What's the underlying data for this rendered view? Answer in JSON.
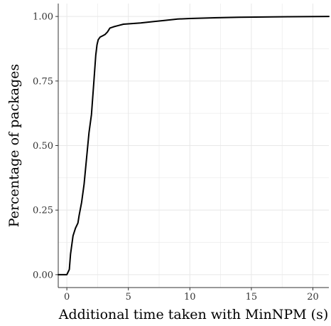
{
  "chart_data": {
    "type": "line",
    "title": "",
    "xlabel": "Additional time taken with MinNPM (s)",
    "ylabel": "Percentage of packages",
    "xlim": [
      -0.7,
      21.3
    ],
    "ylim": [
      -0.05,
      1.05
    ],
    "x_ticks": [
      0,
      5,
      10,
      15,
      20
    ],
    "x_tick_labels": [
      "0",
      "5",
      "10",
      "15",
      "20"
    ],
    "y_ticks": [
      0,
      0.25,
      0.5,
      0.75,
      1
    ],
    "y_tick_labels": [
      "0.00",
      "0.25",
      "0.50",
      "0.75",
      "1.00"
    ],
    "grid": true,
    "legend": "none",
    "colors": {
      "line": "#000000",
      "grid": "#e8e8e8",
      "axis": "#333333"
    },
    "series": [
      {
        "x": [
          -0.7,
          0.0,
          0.2,
          0.3,
          0.5,
          0.7,
          0.9,
          1.0,
          1.2,
          1.4,
          1.6,
          1.8,
          2.0,
          2.2,
          2.35,
          2.45,
          2.55,
          2.7,
          2.9,
          3.1,
          3.3,
          3.5,
          3.8,
          4.2,
          4.6,
          5.2,
          6.0,
          7.0,
          8.0,
          9.0,
          10.0,
          12.0,
          14.0,
          16.0,
          18.0,
          21.3
        ],
        "y": [
          0.0,
          0.0,
          0.02,
          0.08,
          0.15,
          0.18,
          0.2,
          0.23,
          0.28,
          0.35,
          0.45,
          0.55,
          0.62,
          0.75,
          0.85,
          0.89,
          0.91,
          0.92,
          0.925,
          0.93,
          0.94,
          0.955,
          0.96,
          0.965,
          0.97,
          0.972,
          0.975,
          0.98,
          0.985,
          0.99,
          0.992,
          0.995,
          0.997,
          0.998,
          0.999,
          1.0
        ]
      }
    ]
  }
}
